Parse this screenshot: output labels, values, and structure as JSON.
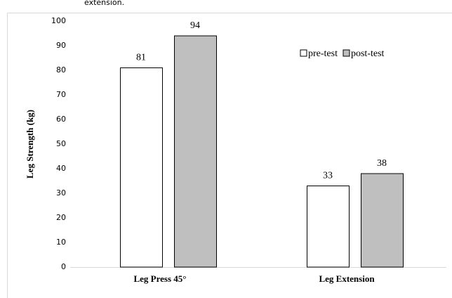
{
  "chart_data": {
    "type": "bar",
    "caption": "extension.",
    "ylabel": "Leg Strength (kg)",
    "categories": [
      "Leg Press 45°",
      "Leg Extension"
    ],
    "series": [
      {
        "name": "pre-test",
        "color": "#ffffff",
        "values": [
          81,
          33
        ]
      },
      {
        "name": "post-test",
        "color": "#bfbfbf",
        "values": [
          94,
          38
        ]
      }
    ],
    "ylim": [
      0,
      100
    ],
    "yticks": [
      0,
      10,
      20,
      30,
      40,
      50,
      60,
      70,
      80,
      90,
      100
    ],
    "grid": false,
    "legend": "top-right",
    "data_labels": true
  }
}
